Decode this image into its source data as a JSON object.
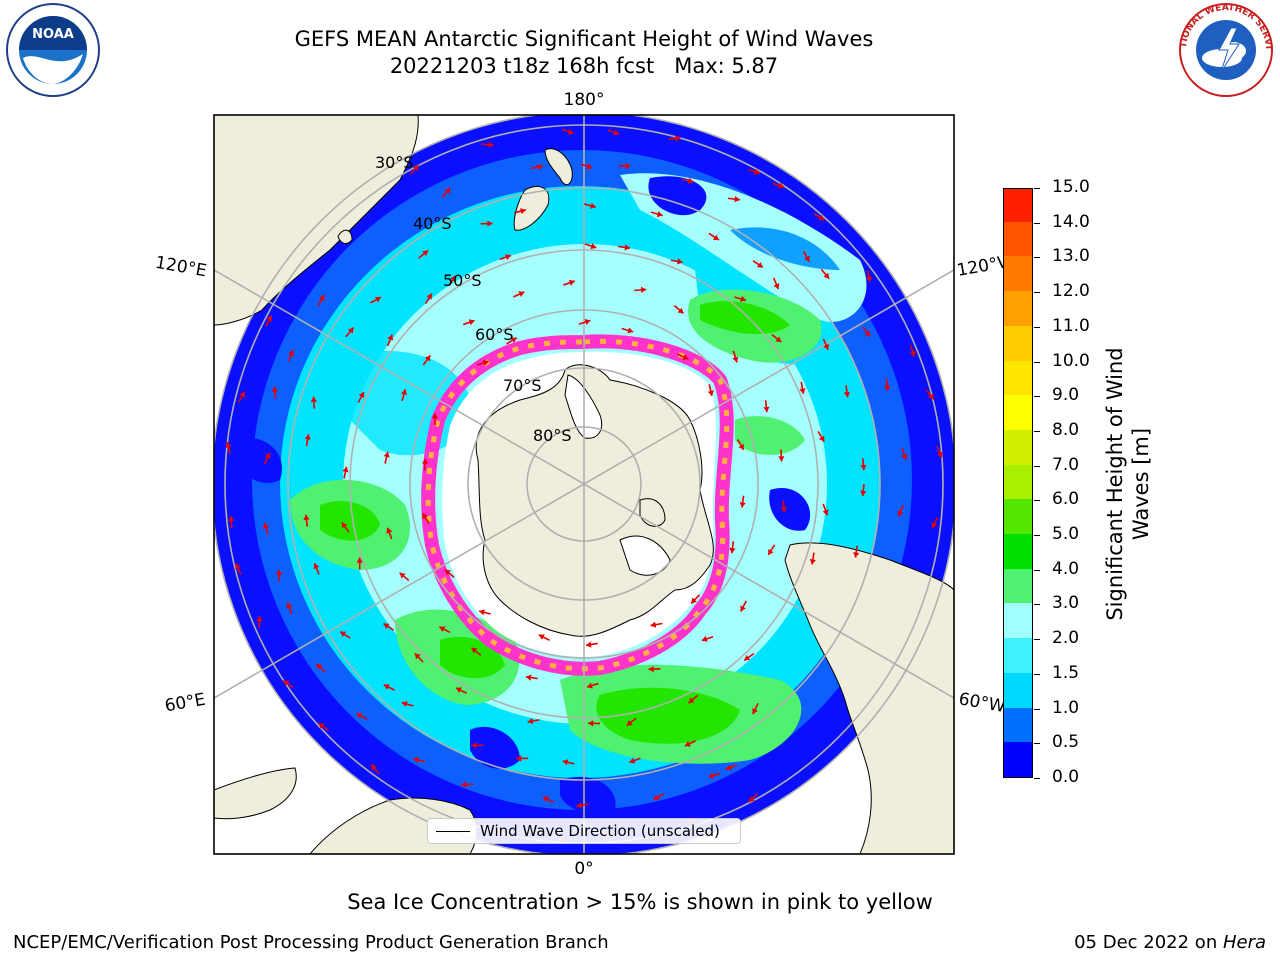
{
  "title": {
    "line1": "GEFS MEAN Antarctic Significant Height of Wind Waves",
    "line2": "20221203 t18z 168h fcst   Max: 5.87"
  },
  "map": {
    "projection": "south-polar-stereographic",
    "lon_labels": {
      "top": "180°",
      "bottom": "0°",
      "left_upper": "120°E",
      "left_lower": "60°E",
      "right_upper": "120°W",
      "right_lower": "60°W"
    },
    "lat_labels": [
      "30°S",
      "40°S",
      "50°S",
      "60°S",
      "70°S",
      "80°S"
    ],
    "legend_label": "Wind Wave Direction (unscaled)",
    "arrow_color": "#e60000",
    "land_color": "#efeddb",
    "grid_color": "#b0b0b0"
  },
  "colorbar": {
    "label": "Significant Height of Wind Waves [m]",
    "ticks": [
      "0.0",
      "0.5",
      "1.0",
      "1.5",
      "2.0",
      "3.0",
      "4.0",
      "5.0",
      "6.0",
      "7.0",
      "8.0",
      "9.0",
      "10.0",
      "11.0",
      "12.0",
      "13.0",
      "14.0",
      "15.0"
    ],
    "colors": [
      "#0000ff",
      "#0070ff",
      "#00d9ff",
      "#40f0ff",
      "#a0ffff",
      "#50f070",
      "#00e000",
      "#55e600",
      "#aaee00",
      "#d0f000",
      "#ffff00",
      "#ffe600",
      "#ffcc00",
      "#ffa000",
      "#ff7b00",
      "#ff5500",
      "#ff2000"
    ]
  },
  "notes": {
    "ice": "Sea Ice Concentration > 15% is shown in pink to yellow",
    "footer_left": "NCEP/EMC/Verification Post Processing Product Generation Branch",
    "footer_date": "05 Dec 2022 on ",
    "footer_machine": "Hera"
  },
  "logos": {
    "noaa_text": "NOAA",
    "nws_text": "NATIONAL WEATHER SERVICE"
  }
}
